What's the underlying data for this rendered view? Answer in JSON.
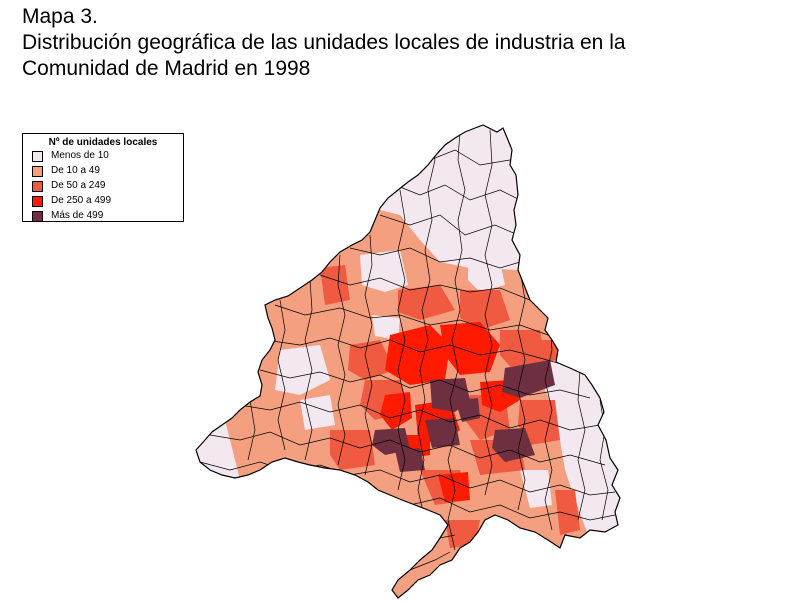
{
  "title": {
    "line1": "Mapa 3.",
    "line2": "Distribución geográfica de las unidades locales de industria en la",
    "line3": "Comunidad de Madrid en 1998"
  },
  "legend": {
    "title": "Nº de unidades locales",
    "items": [
      {
        "label": "Menos de 10",
        "color": "#f4e8f0"
      },
      {
        "label": "De 10 a 49",
        "color": "#f4a080"
      },
      {
        "label": "De 50 a 249",
        "color": "#ef5a40"
      },
      {
        "label": "De 250 a 499",
        "color": "#ff1a00"
      },
      {
        "label": "Más de 499",
        "color": "#6e3040"
      }
    ]
  }
}
